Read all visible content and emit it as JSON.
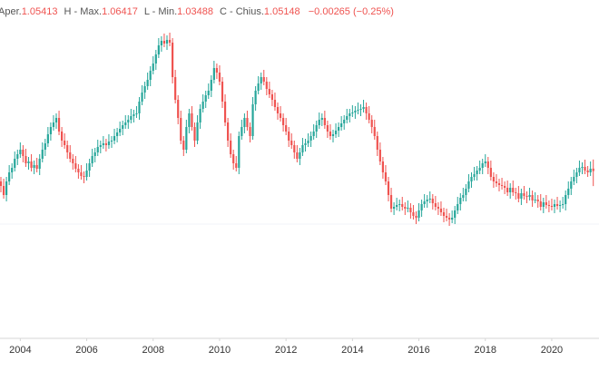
{
  "chart_data": {
    "type": "candlestick",
    "header": {
      "open_label": "Aper.",
      "high_label": "H - Max.",
      "low_label": "L - Min.",
      "close_label": "C - Chius.",
      "change": "−0.00265 (−0.25%)"
    },
    "up_color": "#26a69a",
    "down_color": "#ef5350",
    "ylim": [
      0.87,
      1.24
    ],
    "xticks": [
      {
        "value": 7,
        "label": "2004"
      },
      {
        "value": 31,
        "label": "2006"
      },
      {
        "value": 55,
        "label": "2008"
      },
      {
        "value": 79,
        "label": "2010"
      },
      {
        "value": 103,
        "label": "2012"
      },
      {
        "value": 127,
        "label": "2014"
      },
      {
        "value": 151,
        "label": "2016"
      },
      {
        "value": 175,
        "label": "2018"
      },
      {
        "value": 199,
        "label": "2020"
      }
    ],
    "ohlc": [
      [
        1.04,
        1.045,
        1.028,
        1.035
      ],
      [
        1.035,
        1.043,
        1.021,
        1.025
      ],
      [
        1.025,
        1.045,
        1.018,
        1.04
      ],
      [
        1.04,
        1.058,
        1.036,
        1.05
      ],
      [
        1.05,
        1.06,
        1.043,
        1.055
      ],
      [
        1.055,
        1.073,
        1.051,
        1.065
      ],
      [
        1.065,
        1.075,
        1.058,
        1.07
      ],
      [
        1.07,
        1.083,
        1.066,
        1.075
      ],
      [
        1.075,
        1.08,
        1.061,
        1.068
      ],
      [
        1.068,
        1.076,
        1.056,
        1.06
      ],
      [
        1.06,
        1.067,
        1.053,
        1.062
      ],
      [
        1.062,
        1.07,
        1.051,
        1.055
      ],
      [
        1.055,
        1.063,
        1.048,
        1.058
      ],
      [
        1.058,
        1.066,
        1.05,
        1.054
      ],
      [
        1.054,
        1.07,
        1.047,
        1.065
      ],
      [
        1.065,
        1.083,
        1.061,
        1.075
      ],
      [
        1.075,
        1.087,
        1.068,
        1.082
      ],
      [
        1.082,
        1.1,
        1.078,
        1.092
      ],
      [
        1.092,
        1.105,
        1.085,
        1.1
      ],
      [
        1.1,
        1.113,
        1.096,
        1.105
      ],
      [
        1.105,
        1.115,
        1.098,
        1.11
      ],
      [
        1.11,
        1.118,
        1.091,
        1.095
      ],
      [
        1.095,
        1.1,
        1.078,
        1.085
      ],
      [
        1.085,
        1.093,
        1.076,
        1.08
      ],
      [
        1.08,
        1.085,
        1.065,
        1.072
      ],
      [
        1.072,
        1.08,
        1.061,
        1.065
      ],
      [
        1.065,
        1.07,
        1.053,
        1.06
      ],
      [
        1.06,
        1.068,
        1.05,
        1.054
      ],
      [
        1.054,
        1.059,
        1.043,
        1.05
      ],
      [
        1.05,
        1.058,
        1.042,
        1.046
      ],
      [
        1.046,
        1.051,
        1.038,
        1.045
      ],
      [
        1.045,
        1.06,
        1.041,
        1.052
      ],
      [
        1.052,
        1.065,
        1.045,
        1.06
      ],
      [
        1.06,
        1.076,
        1.056,
        1.068
      ],
      [
        1.068,
        1.077,
        1.061,
        1.072
      ],
      [
        1.072,
        1.086,
        1.068,
        1.078
      ],
      [
        1.078,
        1.085,
        1.071,
        1.08
      ],
      [
        1.08,
        1.09,
        1.076,
        1.082
      ],
      [
        1.082,
        1.087,
        1.073,
        1.08
      ],
      [
        1.08,
        1.092,
        1.076,
        1.084
      ],
      [
        1.084,
        1.09,
        1.077,
        1.085
      ],
      [
        1.085,
        1.098,
        1.081,
        1.09
      ],
      [
        1.09,
        1.099,
        1.083,
        1.094
      ],
      [
        1.094,
        1.106,
        1.09,
        1.098
      ],
      [
        1.098,
        1.107,
        1.091,
        1.102
      ],
      [
        1.102,
        1.113,
        1.098,
        1.105
      ],
      [
        1.105,
        1.113,
        1.098,
        1.108
      ],
      [
        1.108,
        1.12,
        1.104,
        1.112
      ],
      [
        1.112,
        1.119,
        1.105,
        1.114
      ],
      [
        1.114,
        1.123,
        1.11,
        1.115
      ],
      [
        1.115,
        1.133,
        1.108,
        1.128
      ],
      [
        1.128,
        1.146,
        1.124,
        1.138
      ],
      [
        1.138,
        1.15,
        1.131,
        1.145
      ],
      [
        1.145,
        1.16,
        1.141,
        1.152
      ],
      [
        1.152,
        1.167,
        1.145,
        1.162
      ],
      [
        1.162,
        1.178,
        1.158,
        1.17
      ],
      [
        1.17,
        1.185,
        1.163,
        1.18
      ],
      [
        1.18,
        1.198,
        1.176,
        1.19
      ],
      [
        1.19,
        1.2,
        1.183,
        1.195
      ],
      [
        1.195,
        1.203,
        1.188,
        1.192
      ],
      [
        1.192,
        1.201,
        1.185,
        1.196
      ],
      [
        1.196,
        1.204,
        1.189,
        1.193
      ],
      [
        1.193,
        1.198,
        1.148,
        1.155
      ],
      [
        1.155,
        1.163,
        1.126,
        1.13
      ],
      [
        1.13,
        1.135,
        1.103,
        1.11
      ],
      [
        1.11,
        1.118,
        1.081,
        1.085
      ],
      [
        1.085,
        1.09,
        1.068,
        1.075
      ],
      [
        1.075,
        1.108,
        1.071,
        1.1
      ],
      [
        1.1,
        1.12,
        1.093,
        1.115
      ],
      [
        1.115,
        1.123,
        1.096,
        1.1
      ],
      [
        1.1,
        1.105,
        1.078,
        1.085
      ],
      [
        1.085,
        1.113,
        1.081,
        1.105
      ],
      [
        1.105,
        1.125,
        1.098,
        1.12
      ],
      [
        1.12,
        1.136,
        1.116,
        1.128
      ],
      [
        1.128,
        1.14,
        1.121,
        1.135
      ],
      [
        1.135,
        1.148,
        1.131,
        1.14
      ],
      [
        1.14,
        1.157,
        1.133,
        1.152
      ],
      [
        1.152,
        1.173,
        1.148,
        1.165
      ],
      [
        1.165,
        1.17,
        1.153,
        1.16
      ],
      [
        1.16,
        1.168,
        1.146,
        1.15
      ],
      [
        1.15,
        1.155,
        1.121,
        1.128
      ],
      [
        1.128,
        1.136,
        1.101,
        1.105
      ],
      [
        1.105,
        1.11,
        1.078,
        1.085
      ],
      [
        1.085,
        1.093,
        1.066,
        1.07
      ],
      [
        1.07,
        1.075,
        1.053,
        1.06
      ],
      [
        1.06,
        1.068,
        1.051,
        1.055
      ],
      [
        1.055,
        1.095,
        1.048,
        1.09
      ],
      [
        1.09,
        1.108,
        1.086,
        1.1
      ],
      [
        1.1,
        1.115,
        1.093,
        1.11
      ],
      [
        1.11,
        1.118,
        1.096,
        1.1
      ],
      [
        1.1,
        1.105,
        1.083,
        1.09
      ],
      [
        1.09,
        1.133,
        1.086,
        1.125
      ],
      [
        1.125,
        1.145,
        1.118,
        1.14
      ],
      [
        1.14,
        1.156,
        1.136,
        1.148
      ],
      [
        1.148,
        1.16,
        1.141,
        1.155
      ],
      [
        1.155,
        1.163,
        1.146,
        1.15
      ],
      [
        1.15,
        1.155,
        1.135,
        1.142
      ],
      [
        1.142,
        1.15,
        1.132,
        1.136
      ],
      [
        1.136,
        1.141,
        1.123,
        1.13
      ],
      [
        1.13,
        1.138,
        1.118,
        1.122
      ],
      [
        1.122,
        1.127,
        1.108,
        1.115
      ],
      [
        1.115,
        1.123,
        1.106,
        1.11
      ],
      [
        1.11,
        1.115,
        1.095,
        1.102
      ],
      [
        1.102,
        1.11,
        1.091,
        1.095
      ],
      [
        1.095,
        1.1,
        1.078,
        1.085
      ],
      [
        1.085,
        1.093,
        1.076,
        1.08
      ],
      [
        1.08,
        1.085,
        1.065,
        1.072
      ],
      [
        1.072,
        1.08,
        1.061,
        1.065
      ],
      [
        1.065,
        1.077,
        1.058,
        1.072
      ],
      [
        1.072,
        1.088,
        1.068,
        1.08
      ],
      [
        1.08,
        1.087,
        1.073,
        1.082
      ],
      [
        1.082,
        1.093,
        1.078,
        1.085
      ],
      [
        1.085,
        1.095,
        1.078,
        1.09
      ],
      [
        1.09,
        1.103,
        1.086,
        1.095
      ],
      [
        1.095,
        1.107,
        1.088,
        1.102
      ],
      [
        1.102,
        1.116,
        1.098,
        1.108
      ],
      [
        1.108,
        1.115,
        1.101,
        1.11
      ],
      [
        1.11,
        1.118,
        1.098,
        1.102
      ],
      [
        1.102,
        1.107,
        1.088,
        1.095
      ],
      [
        1.095,
        1.103,
        1.086,
        1.09
      ],
      [
        1.09,
        1.097,
        1.083,
        1.092
      ],
      [
        1.092,
        1.104,
        1.088,
        1.096
      ],
      [
        1.096,
        1.105,
        1.089,
        1.1
      ],
      [
        1.1,
        1.112,
        1.096,
        1.104
      ],
      [
        1.104,
        1.113,
        1.097,
        1.108
      ],
      [
        1.108,
        1.12,
        1.104,
        1.112
      ],
      [
        1.112,
        1.12,
        1.105,
        1.115
      ],
      [
        1.115,
        1.124,
        1.111,
        1.116
      ],
      [
        1.116,
        1.123,
        1.109,
        1.118
      ],
      [
        1.118,
        1.127,
        1.114,
        1.119
      ],
      [
        1.119,
        1.125,
        1.112,
        1.12
      ],
      [
        1.12,
        1.13,
        1.116,
        1.122
      ],
      [
        1.122,
        1.127,
        1.108,
        1.115
      ],
      [
        1.115,
        1.123,
        1.104,
        1.108
      ],
      [
        1.108,
        1.113,
        1.093,
        1.1
      ],
      [
        1.1,
        1.108,
        1.086,
        1.09
      ],
      [
        1.09,
        1.095,
        1.068,
        1.075
      ],
      [
        1.075,
        1.083,
        1.058,
        1.062
      ],
      [
        1.062,
        1.067,
        1.043,
        1.05
      ],
      [
        1.05,
        1.058,
        1.036,
        1.04
      ],
      [
        1.04,
        1.045,
        1.018,
        1.025
      ],
      [
        1.025,
        1.033,
        1.006,
        1.01
      ],
      [
        1.01,
        1.017,
        1.003,
        1.012
      ],
      [
        1.012,
        1.022,
        1.008,
        1.014
      ],
      [
        1.014,
        1.02,
        1.007,
        1.015
      ],
      [
        1.015,
        1.023,
        1.008,
        1.012
      ],
      [
        1.012,
        1.017,
        1.003,
        1.01
      ],
      [
        1.01,
        1.019,
        1.006,
        1.011
      ],
      [
        1.011,
        1.016,
        0.999,
        1.006
      ],
      [
        1.006,
        1.014,
        0.998,
        1.002
      ],
      [
        1.002,
        1.007,
        0.993,
        1.0
      ],
      [
        1.0,
        1.016,
        0.996,
        1.008
      ],
      [
        1.008,
        1.02,
        1.001,
        1.015
      ],
      [
        1.015,
        1.026,
        1.011,
        1.018
      ],
      [
        1.018,
        1.025,
        1.011,
        1.02
      ],
      [
        1.02,
        1.029,
        1.016,
        1.021
      ],
      [
        1.021,
        1.026,
        1.009,
        1.016
      ],
      [
        1.016,
        1.024,
        1.008,
        1.012
      ],
      [
        1.012,
        1.017,
        1.003,
        1.01
      ],
      [
        1.01,
        1.018,
        1.002,
        1.006
      ],
      [
        1.006,
        1.011,
        0.995,
        1.002
      ],
      [
        1.002,
        1.01,
        0.996,
        1.0
      ],
      [
        1.0,
        1.005,
        0.991,
        0.998
      ],
      [
        0.998,
        1.008,
        0.994,
        1.0
      ],
      [
        1.0,
        1.013,
        0.993,
        1.008
      ],
      [
        1.008,
        1.023,
        1.004,
        1.015
      ],
      [
        1.015,
        1.027,
        1.008,
        1.022
      ],
      [
        1.022,
        1.033,
        1.018,
        1.025
      ],
      [
        1.025,
        1.037,
        1.018,
        1.032
      ],
      [
        1.032,
        1.048,
        1.028,
        1.04
      ],
      [
        1.04,
        1.05,
        1.033,
        1.045
      ],
      [
        1.045,
        1.056,
        1.041,
        1.048
      ],
      [
        1.048,
        1.057,
        1.041,
        1.052
      ],
      [
        1.052,
        1.063,
        1.048,
        1.055
      ],
      [
        1.055,
        1.065,
        1.048,
        1.06
      ],
      [
        1.06,
        1.07,
        1.056,
        1.062
      ],
      [
        1.062,
        1.067,
        1.048,
        1.055
      ],
      [
        1.055,
        1.063,
        1.041,
        1.045
      ],
      [
        1.045,
        1.05,
        1.033,
        1.04
      ],
      [
        1.04,
        1.048,
        1.034,
        1.038
      ],
      [
        1.038,
        1.043,
        1.029,
        1.036
      ],
      [
        1.036,
        1.044,
        1.031,
        1.035
      ],
      [
        1.035,
        1.04,
        1.026,
        1.033
      ],
      [
        1.033,
        1.041,
        1.024,
        1.028
      ],
      [
        1.028,
        1.038,
        1.021,
        1.033
      ],
      [
        1.033,
        1.041,
        1.024,
        1.028
      ],
      [
        1.028,
        1.033,
        1.02,
        1.027
      ],
      [
        1.027,
        1.035,
        1.017,
        1.021
      ],
      [
        1.021,
        1.032,
        1.014,
        1.027
      ],
      [
        1.027,
        1.035,
        1.02,
        1.024
      ],
      [
        1.024,
        1.029,
        1.016,
        1.023
      ],
      [
        1.023,
        1.033,
        1.019,
        1.025
      ],
      [
        1.025,
        1.03,
        1.012,
        1.019
      ],
      [
        1.019,
        1.028,
        1.016,
        1.02
      ],
      [
        1.02,
        1.025,
        1.011,
        1.018
      ],
      [
        1.018,
        1.026,
        1.008,
        1.012
      ],
      [
        1.012,
        1.022,
        1.005,
        1.017
      ],
      [
        1.017,
        1.025,
        1.01,
        1.014
      ],
      [
        1.014,
        1.019,
        1.006,
        1.013
      ],
      [
        1.013,
        1.021,
        1.008,
        1.012
      ],
      [
        1.012,
        1.02,
        1.005,
        1.015
      ],
      [
        1.015,
        1.023,
        1.009,
        1.013
      ],
      [
        1.013,
        1.019,
        1.006,
        1.014
      ],
      [
        1.014,
        1.023,
        1.01,
        1.015
      ],
      [
        1.015,
        1.03,
        1.008,
        1.025
      ],
      [
        1.025,
        1.04,
        1.021,
        1.032
      ],
      [
        1.032,
        1.045,
        1.025,
        1.04
      ],
      [
        1.04,
        1.053,
        1.036,
        1.045
      ],
      [
        1.045,
        1.055,
        1.038,
        1.05
      ],
      [
        1.05,
        1.063,
        1.046,
        1.055
      ],
      [
        1.055,
        1.061,
        1.048,
        1.056
      ],
      [
        1.056,
        1.064,
        1.048,
        1.052
      ],
      [
        1.052,
        1.057,
        1.045,
        1.05
      ],
      [
        1.05,
        1.062,
        1.046,
        1.054
      ],
      [
        1.05413,
        1.06417,
        1.03488,
        1.05148
      ]
    ]
  }
}
